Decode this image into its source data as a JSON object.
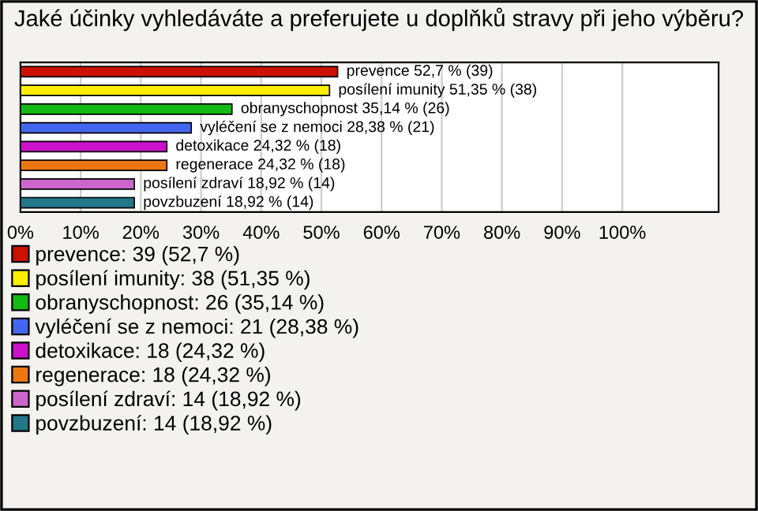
{
  "chart_data": {
    "type": "bar",
    "orientation": "horizontal",
    "title": "Jaké účinky vyhledáváte a preferujete u doplňků stravy při jeho výběru?",
    "categories": [
      null,
      null,
      null,
      null,
      null,
      null,
      null,
      null
    ],
    "series": [
      {
        "name": "prevence: 39 (52,7 %)",
        "color": "#cc1100",
        "values": [
          52.7,
          null,
          null,
          null,
          null,
          null,
          null,
          null
        ],
        "value_labels": [
          "prevence 52,7 % (39)",
          null,
          null,
          null,
          null,
          null,
          null,
          null
        ]
      },
      {
        "name": "posílení imunity: 38 (51,35 %)",
        "color": "#ffee00",
        "values": [
          null,
          51.35,
          null,
          null,
          null,
          null,
          null,
          null
        ],
        "value_labels": [
          null,
          "posílení imunity 51,35 % (38)",
          null,
          null,
          null,
          null,
          null,
          null
        ]
      },
      {
        "name": "obranyschopnost: 26 (35,14 %)",
        "color": "#11bb11",
        "values": [
          null,
          null,
          35.14,
          null,
          null,
          null,
          null,
          null
        ],
        "value_labels": [
          null,
          null,
          "obranyschopnost 35,14 % (26)",
          null,
          null,
          null,
          null,
          null
        ]
      },
      {
        "name": "vyléčení se z nemoci: 21 (28,38 %)",
        "color": "#4466ee",
        "values": [
          null,
          null,
          null,
          28.38,
          null,
          null,
          null,
          null
        ],
        "value_labels": [
          null,
          null,
          null,
          "vyléčení se z nemoci 28,38 % (21)",
          null,
          null,
          null,
          null
        ]
      },
      {
        "name": "detoxikace: 18 (24,32 %)",
        "color": "#cc11cc",
        "values": [
          null,
          null,
          null,
          null,
          24.32,
          null,
          null,
          null
        ],
        "value_labels": [
          null,
          null,
          null,
          null,
          "detoxikace 24,32 % (18)",
          null,
          null,
          null
        ]
      },
      {
        "name": "regenerace: 18 (24,32 %)",
        "color": "#ee7711",
        "values": [
          null,
          null,
          null,
          null,
          null,
          24.32,
          null,
          null
        ],
        "value_labels": [
          null,
          null,
          null,
          null,
          null,
          "regenerace 24,32 % (18)",
          null,
          null
        ]
      },
      {
        "name": "posílení zdraví: 14 (18,92 %)",
        "color": "#cc66cc",
        "values": [
          null,
          null,
          null,
          null,
          null,
          null,
          18.92,
          null
        ],
        "value_labels": [
          null,
          null,
          null,
          null,
          null,
          null,
          "posílení zdraví 18,92 % (14)",
          null
        ]
      },
      {
        "name": "povzbuzení: 14 (18,92 %)",
        "color": "#227788",
        "values": [
          null,
          null,
          null,
          null,
          null,
          null,
          null,
          18.92
        ],
        "value_labels": [
          null,
          null,
          null,
          null,
          null,
          null,
          null,
          "povzbuzení 18,92 % (14)"
        ]
      }
    ],
    "xlim": [
      0,
      116
    ],
    "xticks": [
      {
        "value": 0,
        "label": "0%"
      },
      {
        "value": 10,
        "label": "10%"
      },
      {
        "value": 20,
        "label": "20%"
      },
      {
        "value": 30,
        "label": "30%"
      },
      {
        "value": 40,
        "label": "40%"
      },
      {
        "value": 50,
        "label": "50%"
      },
      {
        "value": 60,
        "label": "60%"
      },
      {
        "value": 70,
        "label": "70%"
      },
      {
        "value": 80,
        "label": "80%"
      },
      {
        "value": 90,
        "label": "90%"
      },
      {
        "value": 100,
        "label": "100%"
      }
    ],
    "grid": "x",
    "legend": "bottom"
  }
}
